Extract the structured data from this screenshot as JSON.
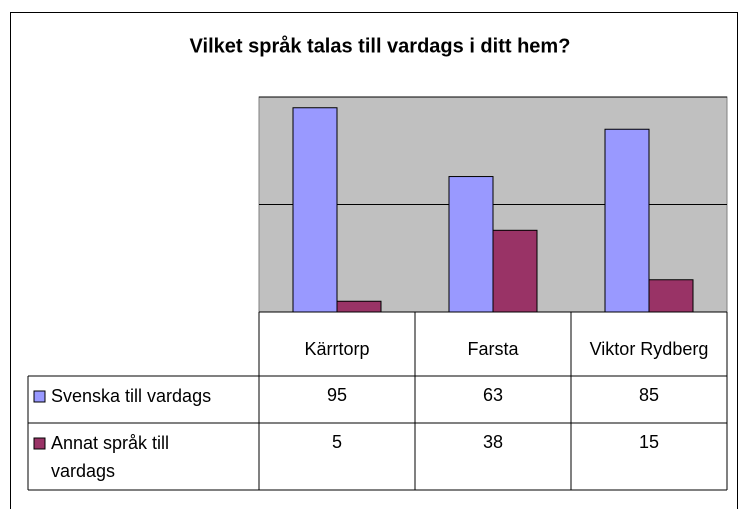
{
  "chart_data": {
    "type": "bar",
    "title": "Vilket språk talas till vardags i ditt hem?",
    "categories": [
      "Kärrtorp",
      "Farsta",
      "Viktor Rydberg"
    ],
    "series": [
      {
        "name": "Svenska till vardags",
        "color": "#9999ff",
        "values": [
          95,
          63,
          85
        ]
      },
      {
        "name": "Annat språk till vardags",
        "color": "#993366",
        "values": [
          5,
          38,
          15
        ]
      }
    ],
    "ylim": [
      0,
      100
    ],
    "yticks": [
      0,
      50,
      100
    ],
    "grid": true,
    "data_table": true
  }
}
